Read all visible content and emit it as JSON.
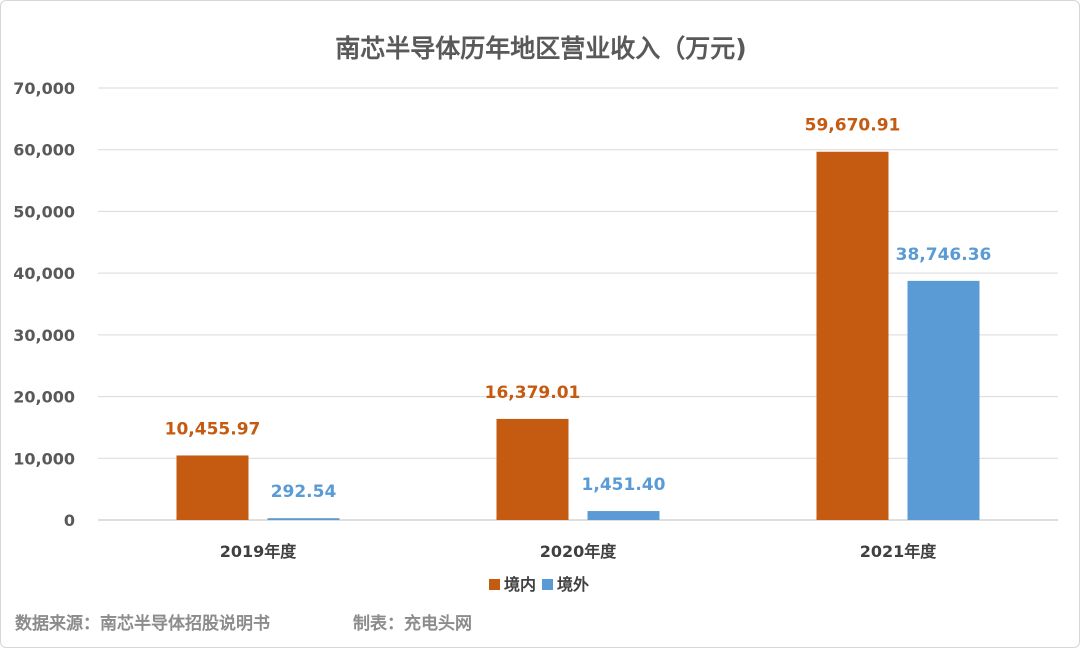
{
  "chart_data": {
    "type": "bar",
    "title": "南芯半导体历年地区营业收入（万元)",
    "categories": [
      "2019年度",
      "2020年度",
      "2021年度"
    ],
    "series": [
      {
        "name": "境内",
        "color": "#C55A11",
        "values": [
          10455.97,
          16379.01,
          59670.91
        ],
        "labels": [
          "10,455.97",
          "16,379.01",
          "59,670.91"
        ]
      },
      {
        "name": "境外",
        "color": "#5B9BD5",
        "values": [
          292.54,
          1451.4,
          38746.36
        ],
        "labels": [
          "292.54",
          "1,451.40",
          "38,746.36"
        ]
      }
    ],
    "ylim": [
      0,
      70000
    ],
    "yticks": [
      0,
      10000,
      20000,
      30000,
      40000,
      50000,
      60000,
      70000
    ],
    "ytick_labels": [
      "0",
      "10,000",
      "20,000",
      "30,000",
      "40,000",
      "50,000",
      "60,000",
      "70,000"
    ],
    "grid": true,
    "legend_position": "bottom"
  },
  "footer": {
    "source": "数据来源：南芯半导体招股说明书",
    "author": "制表：充电头网"
  }
}
